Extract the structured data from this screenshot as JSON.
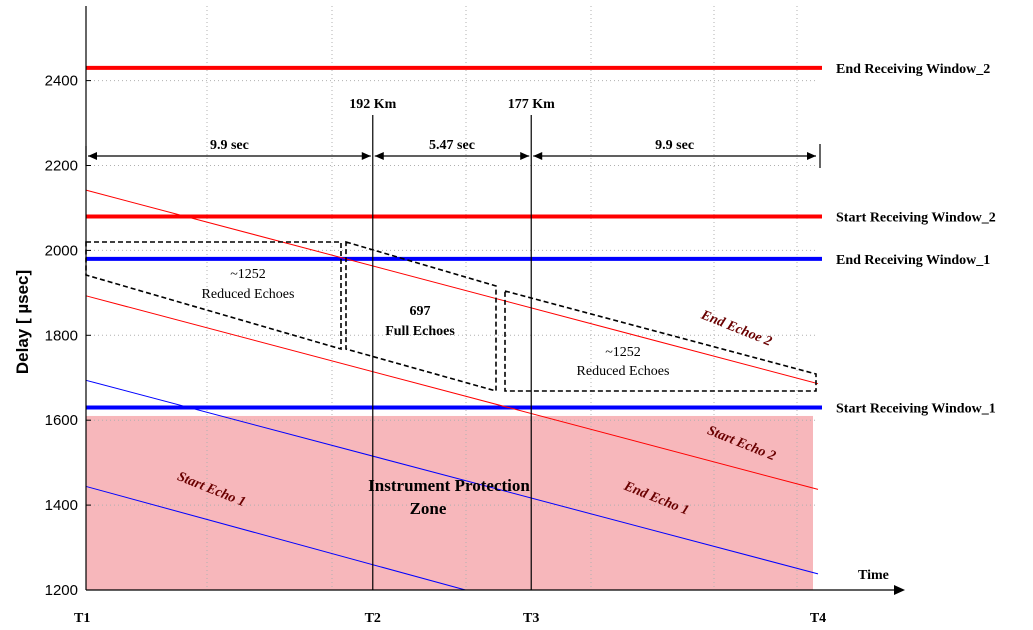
{
  "chart_data": {
    "type": "line",
    "xlabel": "Time",
    "ylabel": "Delay [ µsec]",
    "ylim": [
      1200,
      2500
    ],
    "y_ticks": [
      1200,
      1400,
      1600,
      1800,
      2000,
      2200,
      2400
    ],
    "x_ticks": [
      "T1",
      "T2",
      "T3",
      "T4"
    ],
    "x_tick_positions": [
      0,
      9.9,
      15.37,
      25.27
    ],
    "xlim": [
      0,
      25.27
    ],
    "grid": true,
    "horizontal_lines": [
      {
        "name": "End  Receiving Window_2",
        "y": 2430,
        "color": "#ff0000"
      },
      {
        "name": "Start  Receiving Window_2",
        "y": 2080,
        "color": "#ff0000"
      },
      {
        "name": "End  Receiving Window_1",
        "y": 1980,
        "color": "#0000ff"
      },
      {
        "name": "Start  Receiving Window_1",
        "y": 1630,
        "color": "#0000ff"
      }
    ],
    "echo_lines": [
      {
        "name": "End  Echoe 2",
        "x": [
          0,
          25.27
        ],
        "y": [
          2142,
          1686
        ],
        "color": "#ff0000"
      },
      {
        "name": "Start  Echo 2",
        "x": [
          0,
          25.27
        ],
        "y": [
          1893,
          1437
        ],
        "color": "#ff0000"
      },
      {
        "name": "End  Echo 1",
        "x": [
          0,
          25.27
        ],
        "y": [
          1694,
          1238
        ],
        "color": "#0000ff"
      },
      {
        "name": "Start  Echo 1",
        "x": [
          0,
          13.1
        ],
        "y": [
          1444,
          1200
        ],
        "color": "#0000ff"
      }
    ],
    "vertical_markers": [
      {
        "label": "192 Km",
        "x": 9.9
      },
      {
        "label": "177 Km",
        "x": 15.37
      }
    ],
    "intervals": [
      {
        "label": "9.9 sec",
        "x0": 0,
        "x1": 9.9
      },
      {
        "label": "5.47 sec",
        "x0": 9.9,
        "x1": 15.37
      },
      {
        "label": "9.9 sec",
        "x0": 15.37,
        "x1": 25.27
      }
    ],
    "regions": [
      {
        "count": "~1252",
        "label": "Reduced Echoes"
      },
      {
        "count": "697",
        "label": "Full Echoes"
      },
      {
        "count": "~1252",
        "label": "Reduced Echoes"
      }
    ],
    "protection_zone": {
      "label_line1": "Instrument Protection",
      "label_line2": "Zone",
      "y0": 1200,
      "y1": 1610,
      "color": "#f7b7bb"
    }
  },
  "colors": {
    "red": "#ff0000",
    "blue": "#0000ff",
    "zone": "#f7b7bb",
    "grid": "#b0b0b0",
    "echo_label": "#6a0000"
  }
}
